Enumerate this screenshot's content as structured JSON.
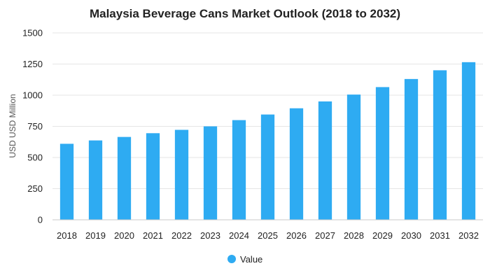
{
  "chart_data": {
    "type": "bar",
    "title": "Malaysia Beverage Cans Market Outlook (2018 to 2032)",
    "xlabel": "",
    "ylabel": "USD USD Million",
    "categories": [
      "2018",
      "2019",
      "2020",
      "2021",
      "2022",
      "2023",
      "2024",
      "2025",
      "2026",
      "2027",
      "2028",
      "2029",
      "2030",
      "2031",
      "2032"
    ],
    "series": [
      {
        "name": "Value",
        "color": "#2eabf2",
        "values": [
          610,
          637,
          665,
          695,
          722,
          750,
          800,
          845,
          895,
          950,
          1005,
          1065,
          1130,
          1200,
          1265
        ]
      }
    ],
    "ylim": [
      0,
      1500
    ],
    "yticks": [
      0,
      250,
      500,
      750,
      1000,
      1250,
      1500
    ],
    "grid": true,
    "legend_position": "bottom-center"
  }
}
